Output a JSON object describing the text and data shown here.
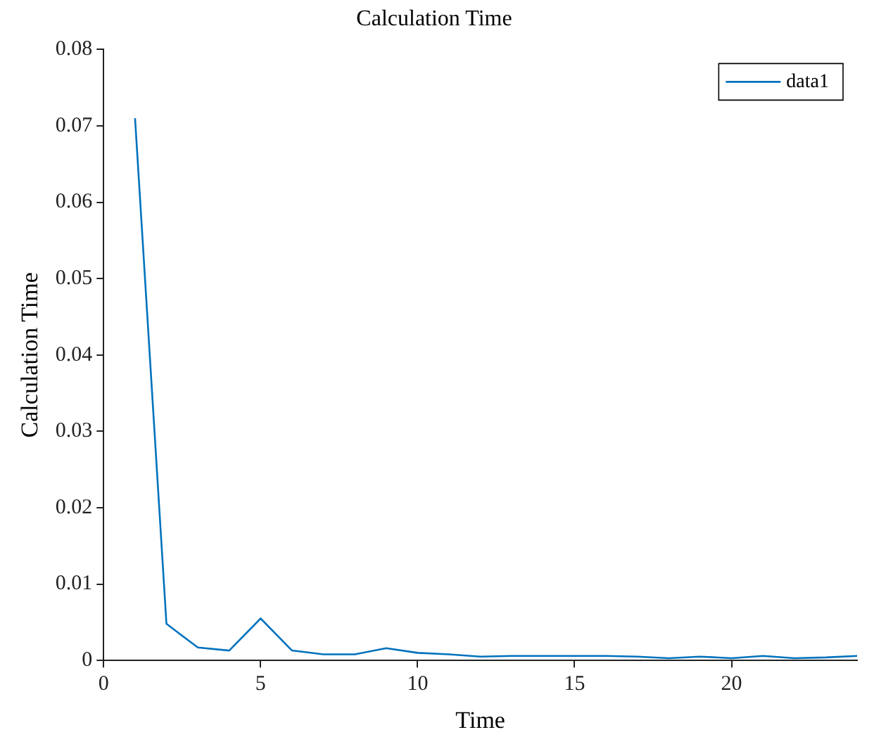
{
  "chart_data": {
    "type": "line",
    "title": "Calculation Time",
    "xlabel": "Time",
    "ylabel": "Calculation Time",
    "x": [
      1,
      2,
      3,
      4,
      5,
      6,
      7,
      8,
      9,
      10,
      11,
      12,
      13,
      14,
      15,
      16,
      17,
      18,
      19,
      20,
      21,
      22,
      23,
      24
    ],
    "series": [
      {
        "name": "data1",
        "color": "#0072bd",
        "values": [
          0.071,
          0.0048,
          0.0017,
          0.0013,
          0.0055,
          0.0013,
          0.0008,
          0.0008,
          0.0016,
          0.001,
          0.0008,
          0.0005,
          0.0006,
          0.0006,
          0.0006,
          0.0006,
          0.0005,
          0.0003,
          0.0005,
          0.0003,
          0.0006,
          0.0003,
          0.0004,
          0.0006
        ]
      }
    ],
    "xlim": [
      0,
      24
    ],
    "xticks": [
      0,
      5,
      10,
      15,
      20
    ],
    "ylim": [
      0,
      0.08
    ],
    "yticks": [
      0,
      0.01,
      0.02,
      0.03,
      0.04,
      0.05,
      0.06,
      0.07,
      0.08
    ],
    "grid": false,
    "legend": "top right",
    "marker": "none",
    "line_style": "solid"
  }
}
